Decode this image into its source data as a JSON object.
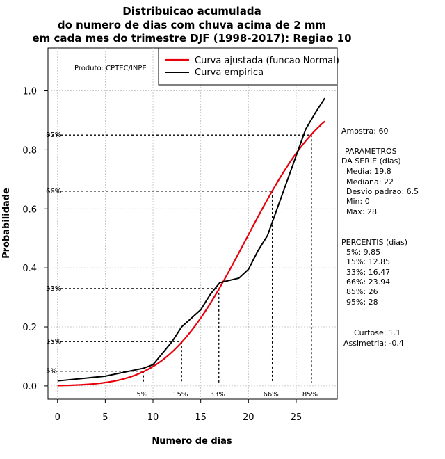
{
  "chart_data": {
    "type": "line",
    "title": [
      "Distribuicao acumulada",
      "do numero de dias com chuva acima de 2 mm",
      "em cada mes do trimestre DJF (1998-2017): Regiao 10"
    ],
    "xlabel": "Numero de dias",
    "ylabel": "Probabilidade",
    "xlim": [
      -1,
      29.3
    ],
    "ylim": [
      -0.045,
      1.145
    ],
    "xticks": [
      0,
      5,
      10,
      15,
      20,
      25
    ],
    "yticks": [
      0.0,
      0.2,
      0.4,
      0.6,
      0.8,
      1.0
    ],
    "ytick_labels": [
      "0.0",
      "0.2",
      "0.4",
      "0.6",
      "0.8",
      "1.0"
    ],
    "grid": true,
    "product": "Produto: CPTEC/INPE",
    "legend": [
      {
        "label": "Curva ajustada (funcao Normal)",
        "color": "#e8000b"
      },
      {
        "label": "Curva empirica",
        "color": "#000000"
      }
    ],
    "fitted": {
      "name": "Curva ajustada (funcao Normal)",
      "mean": 19.8,
      "sd": 6.5,
      "x_from": 0,
      "x_to": 28,
      "color": "#e8000b"
    },
    "series": [
      {
        "name": "Curva empirica",
        "x": [
          0,
          5,
          9,
          10,
          12,
          13,
          15,
          16,
          17,
          19,
          20,
          21,
          22,
          23,
          24,
          25,
          26,
          27,
          28
        ],
        "y": [
          0.017,
          0.033,
          0.06,
          0.072,
          0.15,
          0.2,
          0.258,
          0.31,
          0.35,
          0.365,
          0.395,
          0.458,
          0.51,
          0.6,
          0.69,
          0.78,
          0.87,
          0.925,
          0.975
        ],
        "color": "#000000"
      }
    ],
    "percentile_markers": [
      {
        "label": "5%",
        "x": 9.0,
        "p": 0.05
      },
      {
        "label": "15%",
        "x": 13.0,
        "p": 0.15
      },
      {
        "label": "33%",
        "x": 16.9,
        "p": 0.33
      },
      {
        "label": "66%",
        "x": 22.5,
        "p": 0.66
      },
      {
        "label": "85%",
        "x": 26.6,
        "p": 0.85
      }
    ],
    "stats": {
      "amostra": "Amostra: 60",
      "params_heading": [
        "PARAMETROS",
        "DA SERIE (dias)"
      ],
      "params": [
        "Media: 19.8",
        "Mediana: 22",
        "Desvio padrao: 6.5",
        "Min: 0",
        "Max: 28"
      ],
      "percentis_heading": "PERCENTIS (dias)",
      "percentis": [
        "5%: 9.85",
        "15%: 12.85",
        "33%: 16.47",
        "66%: 23.94",
        "85%: 26",
        "95%: 28"
      ],
      "curtose": "Curtose: 1.1",
      "assimetria": "Assimetria: -0.4"
    }
  }
}
